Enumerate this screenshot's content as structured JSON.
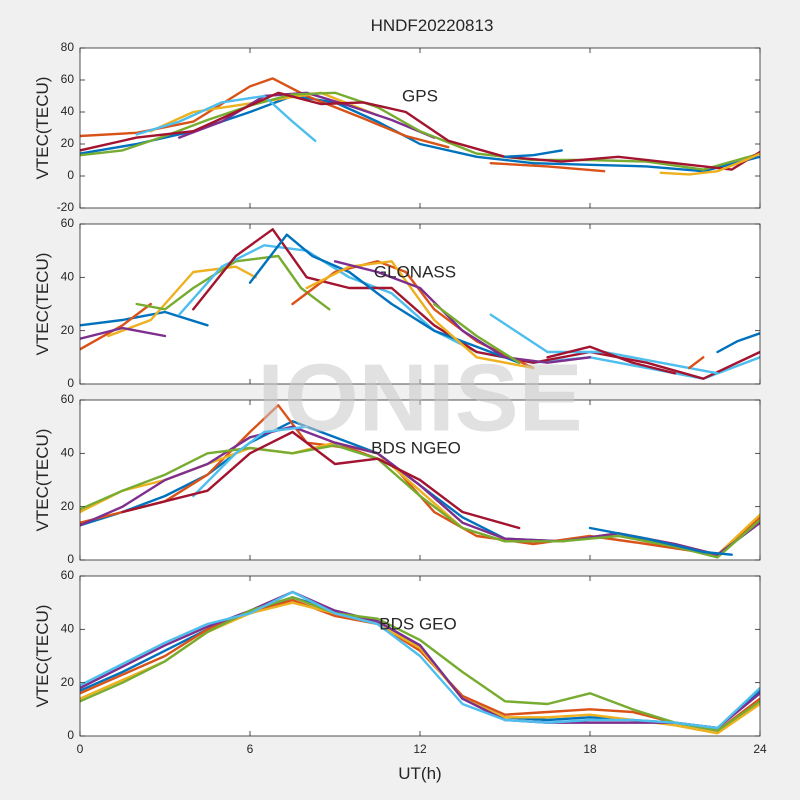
{
  "figure": {
    "title": "HNDF20220813",
    "xlabel": "UT(h)",
    "watermark": "IONISE",
    "background": "#f0f0f0",
    "axes_background": "#ffffff"
  },
  "colors": [
    "#0072bd",
    "#d95319",
    "#edb120",
    "#7e2f8e",
    "#77ac30",
    "#4dbeee",
    "#a2142f"
  ],
  "chart_data": [
    {
      "type": "line",
      "title": "",
      "panel_label": "GPS",
      "ylabel": "VTEC(TECU)",
      "xlim": [
        0,
        24
      ],
      "ylim": [
        -20,
        80
      ],
      "xticks": [
        0,
        6,
        12,
        18,
        24
      ],
      "yticks": [
        -20,
        0,
        20,
        40,
        60,
        80
      ],
      "grid": false,
      "series": [
        {
          "x": [
            0,
            2,
            4,
            6,
            7.5,
            9,
            10.5,
            12,
            14,
            16,
            18,
            20,
            22,
            24
          ],
          "y": [
            14,
            20,
            28,
            40,
            50,
            46,
            34,
            20,
            12,
            8,
            7,
            6,
            3,
            12
          ]
        },
        {
          "x": [
            0,
            2,
            4,
            6,
            6.8,
            8,
            10,
            11.5,
            13
          ],
          "y": [
            25,
            27,
            34,
            56,
            61,
            50,
            36,
            25,
            18
          ]
        },
        {
          "x": [
            2.5,
            4,
            5.5,
            7,
            8.5,
            10.5
          ],
          "y": [
            28,
            40,
            44,
            48,
            52,
            38
          ]
        },
        {
          "x": [
            3.5,
            5,
            6.5,
            8,
            9.5,
            11,
            12.5
          ],
          "y": [
            24,
            34,
            50,
            52,
            44,
            35,
            24
          ]
        },
        {
          "x": [
            0,
            1.5,
            3,
            4.5,
            6,
            7.5,
            9,
            10.5,
            12,
            14,
            16,
            18,
            20,
            22,
            24
          ],
          "y": [
            13,
            16,
            25,
            35,
            44,
            51,
            52,
            43,
            28,
            14,
            10,
            10,
            9,
            4,
            14
          ]
        },
        {
          "x": [
            2,
            3.5,
            5,
            6.5,
            7.5,
            8.3
          ],
          "y": [
            26,
            34,
            46,
            50,
            34,
            22
          ]
        },
        {
          "x": [
            0,
            2,
            4,
            5.5,
            7,
            8.5,
            10,
            11.5,
            13,
            15,
            17,
            19,
            21,
            23,
            24
          ],
          "y": [
            16,
            24,
            28,
            40,
            52,
            45,
            46,
            40,
            22,
            12,
            9,
            12,
            8,
            4,
            15
          ]
        },
        {
          "x": [
            15,
            16,
            17
          ],
          "y": [
            12,
            13,
            16
          ]
        },
        {
          "x": [
            14.5,
            16.5,
            18.5
          ],
          "y": [
            8,
            6,
            3
          ]
        },
        {
          "x": [
            20.5,
            21.5,
            22.5,
            23.5,
            24
          ],
          "y": [
            2,
            1,
            3,
            10,
            14
          ]
        }
      ]
    },
    {
      "type": "line",
      "title": "",
      "panel_label": "GLONASS",
      "ylabel": "VTEC(TECU)",
      "xlim": [
        0,
        24
      ],
      "ylim": [
        0,
        60
      ],
      "xticks": [
        0,
        6,
        12,
        18,
        24
      ],
      "yticks": [
        0,
        20,
        40,
        60
      ],
      "grid": false,
      "series": [
        {
          "x": [
            0,
            1.5,
            3,
            4.5
          ],
          "y": [
            22,
            24,
            27,
            22
          ]
        },
        {
          "x": [
            0,
            1.5,
            2.5
          ],
          "y": [
            13,
            22,
            30
          ]
        },
        {
          "x": [
            1,
            2.5,
            4,
            5.5,
            6.2
          ],
          "y": [
            18,
            24,
            42,
            44,
            40
          ]
        },
        {
          "x": [
            0,
            1.5,
            3
          ],
          "y": [
            17,
            21,
            18
          ]
        },
        {
          "x": [
            2,
            3,
            4,
            5.5,
            7,
            7.8,
            8.8
          ],
          "y": [
            30,
            28,
            36,
            46,
            48,
            36,
            28
          ]
        },
        {
          "x": [
            3.5,
            5,
            6.5,
            8,
            9.5,
            11,
            12.5,
            14,
            16,
            18,
            20,
            22,
            24
          ],
          "y": [
            26,
            44,
            52,
            50,
            40,
            34,
            20,
            12,
            8,
            10,
            6,
            2,
            10
          ]
        },
        {
          "x": [
            4,
            5.5,
            6.8,
            8,
            9.5,
            11,
            12.5,
            14,
            16,
            18,
            20,
            22,
            24
          ],
          "y": [
            28,
            48,
            58,
            40,
            36,
            36,
            22,
            12,
            8,
            12,
            8,
            2,
            12
          ]
        },
        {
          "x": [
            6,
            7.3,
            8.2,
            9.5,
            11,
            12.5,
            14,
            15.5
          ],
          "y": [
            38,
            56,
            48,
            42,
            30,
            20,
            14,
            8
          ]
        },
        {
          "x": [
            7.5,
            9,
            10.5,
            11.5,
            12.5,
            14,
            16
          ],
          "y": [
            30,
            42,
            46,
            42,
            28,
            16,
            6
          ]
        },
        {
          "x": [
            8,
            9.5,
            11,
            12.5,
            14,
            16
          ],
          "y": [
            36,
            44,
            46,
            24,
            10,
            6
          ]
        },
        {
          "x": [
            9,
            10.5,
            12,
            13.5,
            15,
            16.5,
            18
          ],
          "y": [
            46,
            42,
            36,
            20,
            10,
            8,
            10
          ]
        },
        {
          "x": [
            12.5,
            14,
            15.5
          ],
          "y": [
            30,
            18,
            8
          ]
        },
        {
          "x": [
            14.5,
            16.5,
            18.5,
            20.5,
            22.5
          ],
          "y": [
            26,
            12,
            12,
            8,
            4
          ]
        },
        {
          "x": [
            16.5,
            18,
            19.5,
            21
          ],
          "y": [
            10,
            14,
            8,
            4
          ]
        },
        {
          "x": [
            22.5,
            23.2,
            24
          ],
          "y": [
            12,
            16,
            19
          ]
        },
        {
          "x": [
            21.5,
            22
          ],
          "y": [
            6,
            10
          ]
        }
      ]
    },
    {
      "type": "line",
      "title": "",
      "panel_label": "BDS NGEO",
      "ylabel": "VTEC(TECU)",
      "xlim": [
        0,
        24
      ],
      "ylim": [
        0,
        60
      ],
      "xticks": [
        0,
        6,
        12,
        18,
        24
      ],
      "yticks": [
        0,
        20,
        40,
        60
      ],
      "grid": false,
      "series": [
        {
          "x": [
            0,
            1.5,
            3,
            4.5,
            6,
            7.5,
            9,
            10.5,
            12,
            13.5,
            15,
            17,
            19,
            21,
            22.5,
            24
          ],
          "y": [
            13,
            18,
            24,
            32,
            44,
            52,
            46,
            40,
            28,
            16,
            8,
            7,
            10,
            5,
            2,
            14
          ]
        },
        {
          "x": [
            0,
            1.5,
            3,
            4.5,
            6,
            7,
            8,
            9.5,
            11,
            12.5,
            14,
            16,
            18,
            20,
            22.5,
            24
          ],
          "y": [
            14,
            18,
            22,
            32,
            48,
            58,
            44,
            42,
            36,
            18,
            9,
            6,
            9,
            6,
            2,
            16
          ]
        },
        {
          "x": [
            0,
            1.5,
            3,
            4.5,
            6,
            7.5,
            9,
            10.5,
            12,
            13.5,
            15,
            17,
            19,
            21,
            22.5,
            24
          ],
          "y": [
            18,
            26,
            30,
            36,
            42,
            40,
            44,
            40,
            26,
            12,
            7,
            7,
            10,
            6,
            2,
            17
          ]
        },
        {
          "x": [
            0,
            1.5,
            3,
            4.5,
            6,
            7.5,
            9,
            10.5,
            12,
            13.5,
            15,
            17,
            19,
            21,
            22.5,
            24
          ],
          "y": [
            13,
            20,
            30,
            36,
            46,
            50,
            44,
            40,
            28,
            14,
            8,
            7,
            10,
            6,
            2,
            14
          ]
        },
        {
          "x": [
            0,
            1.5,
            3,
            4.5,
            6,
            7.5,
            9,
            10.5,
            12,
            13.5,
            15,
            17,
            19,
            21,
            22.5,
            24
          ],
          "y": [
            19,
            26,
            32,
            40,
            42,
            40,
            43,
            38,
            24,
            12,
            7,
            7,
            9,
            5,
            1,
            15
          ]
        },
        {
          "x": [
            4,
            5.5,
            6.5,
            8
          ],
          "y": [
            24,
            40,
            48,
            50
          ]
        },
        {
          "x": [
            1.5,
            3,
            4.5,
            6,
            7.5,
            9,
            10.5,
            12,
            13.5,
            15.5
          ],
          "y": [
            18,
            22,
            26,
            40,
            48,
            36,
            38,
            30,
            18,
            12
          ]
        },
        {
          "x": [
            18,
            20,
            22,
            23
          ],
          "y": [
            12,
            8,
            3,
            2
          ]
        }
      ]
    },
    {
      "type": "line",
      "title": "",
      "panel_label": "BDS GEO",
      "ylabel": "VTEC(TECU)",
      "xlim": [
        0,
        24
      ],
      "ylim": [
        0,
        60
      ],
      "xticks": [
        0,
        6,
        12,
        18,
        24
      ],
      "yticks": [
        0,
        20,
        40,
        60
      ],
      "grid": false,
      "series": [
        {
          "x": [
            0,
            1.5,
            3,
            4.5,
            6,
            7.5,
            9,
            10.5,
            12,
            13.5,
            15,
            16.5,
            18,
            19.5,
            21,
            22.5,
            24
          ],
          "y": [
            17,
            24,
            32,
            40,
            46,
            52,
            47,
            43,
            34,
            14,
            7,
            6,
            7,
            6,
            5,
            3,
            17
          ]
        },
        {
          "x": [
            0,
            1.5,
            3,
            4.5,
            6,
            7.5,
            9,
            10.5,
            12,
            13.5,
            15,
            16.5,
            18,
            19.5,
            21,
            22.5,
            24
          ],
          "y": [
            16,
            23,
            30,
            40,
            46,
            51,
            45,
            42,
            32,
            15,
            8,
            9,
            10,
            9,
            5,
            2,
            14
          ]
        },
        {
          "x": [
            0,
            1.5,
            3,
            4.5,
            6,
            7.5,
            9,
            10.5,
            12,
            13.5,
            15,
            16.5,
            18,
            19.5,
            21,
            22.5,
            24
          ],
          "y": [
            14,
            21,
            28,
            39,
            46,
            50,
            46,
            42,
            33,
            14,
            7,
            7,
            8,
            6,
            4,
            1,
            12
          ]
        },
        {
          "x": [
            0,
            1.5,
            3,
            4.5,
            6,
            7.5,
            9,
            10.5,
            12,
            13.5,
            15,
            16.5,
            18,
            19.5,
            21,
            22.5,
            24
          ],
          "y": [
            18,
            26,
            34,
            41,
            47,
            54,
            47,
            43,
            34,
            14,
            6,
            5,
            5,
            5,
            5,
            3,
            16
          ]
        },
        {
          "x": [
            0,
            1.5,
            3,
            4.5,
            6,
            7.5,
            9,
            10.5,
            12,
            13.5,
            15,
            16.5,
            18,
            19.5,
            21,
            22.5,
            24
          ],
          "y": [
            13,
            20,
            28,
            39,
            47,
            52,
            46,
            44,
            36,
            24,
            13,
            12,
            16,
            10,
            5,
            2,
            13
          ]
        },
        {
          "x": [
            0,
            1.5,
            3,
            4.5,
            6,
            7.5,
            9,
            10.5,
            12,
            13.5,
            15,
            16.5,
            18,
            19.5,
            21,
            22.5,
            24
          ],
          "y": [
            19,
            27,
            35,
            42,
            46,
            54,
            46,
            42,
            30,
            12,
            6,
            5,
            6,
            6,
            5,
            3,
            18
          ]
        }
      ]
    }
  ]
}
